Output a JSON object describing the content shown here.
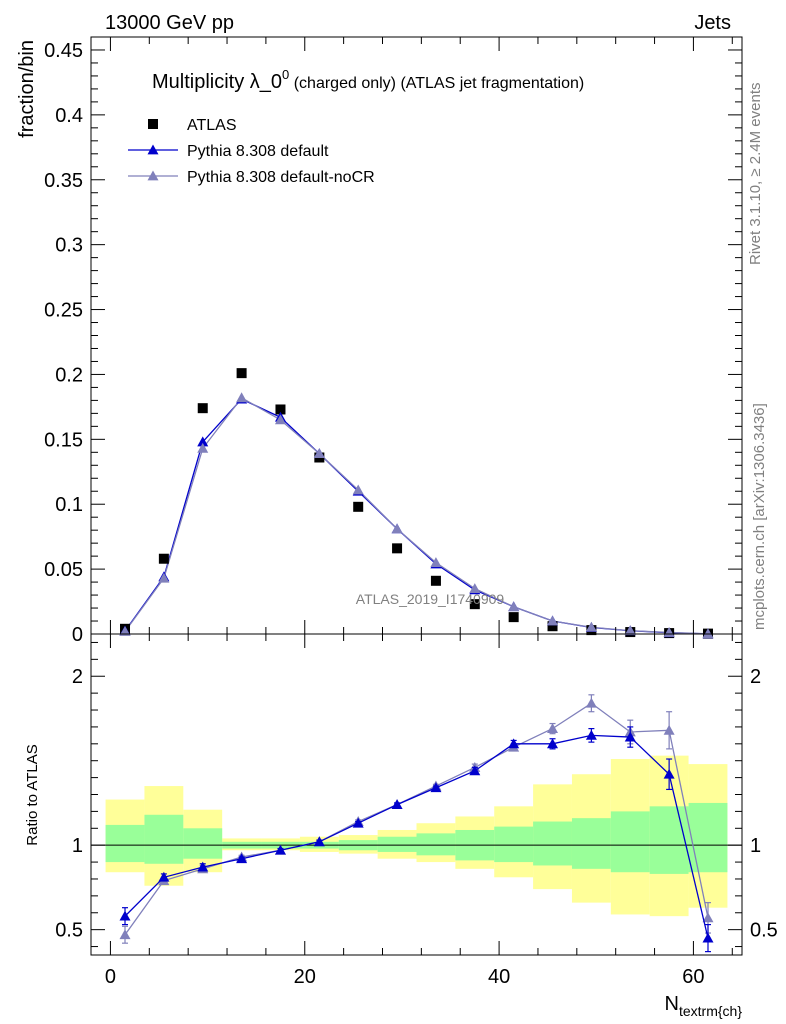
{
  "header": {
    "left": "13000 GeV pp",
    "right": "Jets"
  },
  "side_labels": {
    "rivet": "Rivet 3.1.10, ≥ 2.4M events",
    "mcplots": "mcplots.cern.ch [arXiv:1306.3436]"
  },
  "watermark": "ATLAS_2019_I1740909",
  "chart_data": [
    {
      "type": "scatter",
      "title_main": "Multiplicity λ_0",
      "title_sup": "0",
      "title_rest": " (charged only) (ATLAS jet fragmentation)",
      "ylabel": "fraction/bin",
      "xlim": [
        -2,
        65
      ],
      "ylim": [
        0,
        0.46
      ],
      "yticks": [
        0,
        0.05,
        0.1,
        0.15,
        0.2,
        0.25,
        0.3,
        0.35,
        0.4,
        0.45
      ],
      "ytick_labels": [
        "0",
        "0.05",
        "0.1",
        "0.15",
        "0.2",
        "0.25",
        "0.3",
        "0.35",
        "0.4",
        "0.45"
      ],
      "x": [
        1.5,
        5.5,
        9.5,
        13.5,
        17.5,
        21.5,
        25.5,
        29.5,
        33.5,
        37.5,
        41.5,
        45.5,
        49.5,
        53.5,
        57.5,
        61.5
      ],
      "series": [
        {
          "name": "ATLAS",
          "color": "#000000",
          "marker": "square",
          "values": [
            0.004,
            0.058,
            0.174,
            0.201,
            0.173,
            0.136,
            0.098,
            0.066,
            0.041,
            0.023,
            0.013,
            0.006,
            0.003,
            0.0015,
            0.0007,
            0.0003
          ]
        },
        {
          "name": "Pythia 8.308 default",
          "color": "#0000cc",
          "marker": "triangle",
          "values": [
            0.0023,
            0.044,
            0.148,
            0.181,
            0.167,
            0.139,
            0.11,
            0.081,
            0.054,
            0.034,
            0.021,
            0.01,
            0.005,
            0.0025,
            0.001,
            0.0001
          ]
        },
        {
          "name": "Pythia 8.308 default-noCR",
          "color": "#8080bb",
          "marker": "triangle",
          "values": [
            0.0019,
            0.043,
            0.143,
            0.182,
            0.165,
            0.139,
            0.111,
            0.081,
            0.055,
            0.035,
            0.021,
            0.01,
            0.0052,
            0.0026,
            0.0012,
            0.0002
          ]
        }
      ]
    },
    {
      "type": "line",
      "ylabel": "Ratio to ATLAS",
      "xlabel": "N",
      "xlabel_sub": "textrm{ch}",
      "xlim": [
        -2,
        65
      ],
      "ylim": [
        0.35,
        2.25
      ],
      "xticks": [
        0,
        20,
        40,
        60
      ],
      "xtick_labels": [
        "0",
        "20",
        "40",
        "60"
      ],
      "yticks": [
        0.5,
        1,
        2
      ],
      "ytick_labels": [
        "0.5",
        "1",
        "2"
      ],
      "bands": {
        "edges": [
          -0.5,
          3.5,
          7.5,
          11.5,
          15.5,
          19.5,
          23.5,
          27.5,
          31.5,
          35.5,
          39.5,
          43.5,
          47.5,
          51.5,
          55.5,
          59.5,
          63.5
        ],
        "green_lo": [
          0.9,
          0.89,
          0.92,
          0.98,
          0.98,
          0.98,
          0.97,
          0.96,
          0.94,
          0.91,
          0.9,
          0.88,
          0.86,
          0.84,
          0.83,
          0.84
        ],
        "green_hi": [
          1.12,
          1.18,
          1.1,
          1.02,
          1.02,
          1.02,
          1.03,
          1.05,
          1.07,
          1.09,
          1.11,
          1.14,
          1.16,
          1.2,
          1.23,
          1.25
        ],
        "yellow_lo": [
          0.84,
          0.76,
          0.84,
          0.97,
          0.97,
          0.96,
          0.95,
          0.92,
          0.9,
          0.86,
          0.81,
          0.74,
          0.66,
          0.59,
          0.58,
          0.63
        ],
        "yellow_hi": [
          1.27,
          1.35,
          1.21,
          1.04,
          1.04,
          1.05,
          1.06,
          1.09,
          1.13,
          1.17,
          1.23,
          1.36,
          1.42,
          1.51,
          1.53,
          1.48
        ]
      },
      "x": [
        1.5,
        5.5,
        9.5,
        13.5,
        17.5,
        21.5,
        25.5,
        29.5,
        33.5,
        37.5,
        41.5,
        45.5,
        49.5,
        53.5,
        57.5,
        61.5
      ],
      "series": [
        {
          "name": "Pythia 8.308 default",
          "color": "#0000cc",
          "values": [
            0.58,
            0.81,
            0.87,
            0.92,
            0.97,
            1.02,
            1.13,
            1.24,
            1.34,
            1.44,
            1.6,
            1.6,
            1.65,
            1.64,
            1.42,
            0.45
          ],
          "err": [
            0.05,
            0.02,
            0.02,
            0.01,
            0.01,
            0.01,
            0.01,
            0.01,
            0.01,
            0.02,
            0.02,
            0.03,
            0.04,
            0.06,
            0.09,
            0.08
          ]
        },
        {
          "name": "Pythia 8.308 default-noCR",
          "color": "#8080bb",
          "values": [
            0.47,
            0.79,
            0.86,
            0.93,
            0.97,
            1.02,
            1.14,
            1.24,
            1.35,
            1.46,
            1.58,
            1.69,
            1.84,
            1.67,
            1.68,
            0.57
          ],
          "err": [
            0.05,
            0.02,
            0.02,
            0.01,
            0.01,
            0.01,
            0.01,
            0.01,
            0.01,
            0.02,
            0.02,
            0.03,
            0.05,
            0.07,
            0.11,
            0.09
          ]
        }
      ]
    }
  ]
}
